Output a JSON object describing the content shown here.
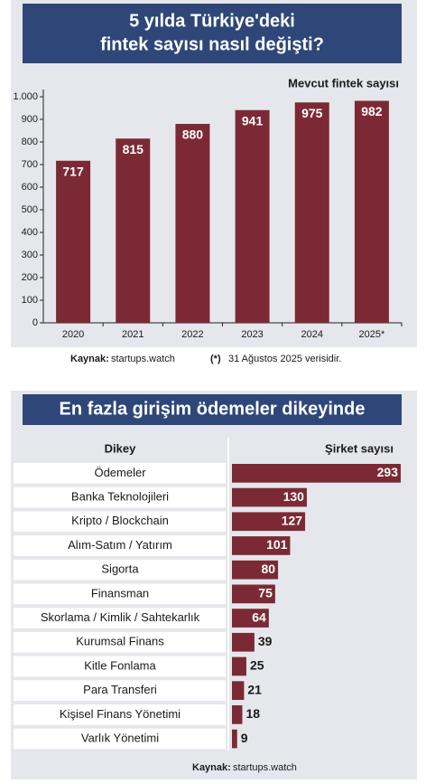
{
  "chart_data": [
    {
      "type": "bar",
      "orientation": "vertical",
      "title": [
        "5 yılda Türkiye'deki",
        "fintek sayısı nasıl değişti?"
      ],
      "categories": [
        "2020",
        "2021",
        "2022",
        "2023",
        "2024",
        "2025*"
      ],
      "series": [
        {
          "name": "Mevcut fintek sayısı",
          "color": "#7b2a35",
          "values": [
            717,
            815,
            880,
            941,
            975,
            982
          ]
        }
      ],
      "ylim": [
        0,
        1000
      ],
      "yticks": [
        0,
        100,
        200,
        300,
        400,
        500,
        600,
        700,
        800,
        900,
        {
          "value": 1000,
          "label": "1.000"
        }
      ],
      "source_label": "Kaynak:",
      "source": "startups.watch",
      "note_marker": "(*)",
      "note": "31 Ağustos 2025 verisidir."
    },
    {
      "type": "bar",
      "orientation": "horizontal",
      "title": [
        "En fazla girişim ödemeler dikeyinde"
      ],
      "category_header": "Dikey",
      "value_header": "Şirket sayısı",
      "categories": [
        "Ödemeler",
        "Banka Teknolojileri",
        "Kripto / Blockchain",
        "Alım-Satım / Yatırım",
        "Sigorta",
        "Finansman",
        "Skorlama / Kimlik / Sahtekarlık",
        "Kurumsal Finans",
        "Kitle Fonlama",
        "Para Transferi",
        "Kişisel Finans Yönetimi",
        "Varlık Yönetimi"
      ],
      "values": [
        293,
        130,
        127,
        101,
        80,
        75,
        64,
        39,
        25,
        21,
        18,
        9
      ],
      "color": "#7b2a35",
      "source_label": "Kaynak:",
      "source": "startups.watch"
    }
  ]
}
